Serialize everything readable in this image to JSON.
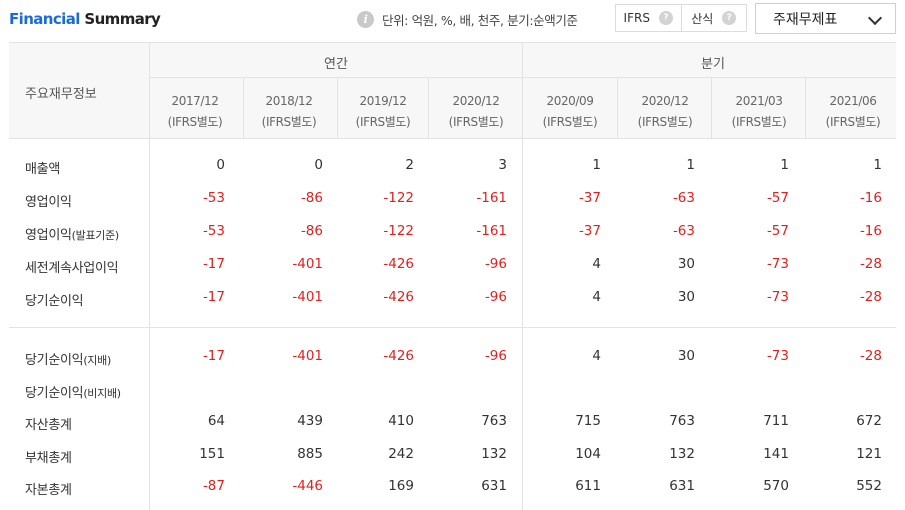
{
  "header": {
    "title_part1": "Financial",
    "title_part2": " Summary",
    "info_icon": "info-icon",
    "unit_text": "단위: 억원, %, 배, 천주, 분기:순액기준",
    "toggle_ifrs": "IFRS",
    "toggle_formula": "산식",
    "help_glyph": "?",
    "select_value": "주재무제표"
  },
  "table": {
    "header_label": "주요재무정보",
    "groups": {
      "annual": "연간",
      "quarterly": "분기"
    },
    "periods": [
      {
        "date": "2017/12",
        "basis": "(IFRS별도)"
      },
      {
        "date": "2018/12",
        "basis": "(IFRS별도)"
      },
      {
        "date": "2019/12",
        "basis": "(IFRS별도)"
      },
      {
        "date": "2020/12",
        "basis": "(IFRS별도)"
      },
      {
        "date": "2020/09",
        "basis": "(IFRS별도)"
      },
      {
        "date": "2020/12",
        "basis": "(IFRS별도)"
      },
      {
        "date": "2021/03",
        "basis": "(IFRS별도)"
      },
      {
        "date": "2021/06",
        "basis": "(IFRS별도)"
      }
    ],
    "rows": [
      {
        "label": "매출액",
        "suffix": "",
        "values": [
          "0",
          "0",
          "2",
          "3",
          "1",
          "1",
          "1",
          "1"
        ]
      },
      {
        "label": "영업이익",
        "suffix": "",
        "values": [
          "-53",
          "-86",
          "-122",
          "-161",
          "-37",
          "-63",
          "-57",
          "-16"
        ]
      },
      {
        "label": "영업이익",
        "suffix": "(발표기준)",
        "values": [
          "-53",
          "-86",
          "-122",
          "-161",
          "-37",
          "-63",
          "-57",
          "-16"
        ]
      },
      {
        "label": "세전계속사업이익",
        "suffix": "",
        "values": [
          "-17",
          "-401",
          "-426",
          "-96",
          "4",
          "30",
          "-73",
          "-28"
        ]
      },
      {
        "label": "당기순이익",
        "suffix": "",
        "values": [
          "-17",
          "-401",
          "-426",
          "-96",
          "4",
          "30",
          "-73",
          "-28"
        ]
      },
      {
        "label": "당기순이익",
        "suffix": "(지배)",
        "values": [
          "-17",
          "-401",
          "-426",
          "-96",
          "4",
          "30",
          "-73",
          "-28"
        ]
      },
      {
        "label": "당기순이익",
        "suffix": "(비지배)",
        "values": [
          "",
          "",
          "",
          "",
          "",
          "",
          "",
          ""
        ]
      },
      {
        "label": "자산총계",
        "suffix": "",
        "values": [
          "64",
          "439",
          "410",
          "763",
          "715",
          "763",
          "711",
          "672"
        ]
      },
      {
        "label": "부채총계",
        "suffix": "",
        "values": [
          "151",
          "885",
          "242",
          "132",
          "104",
          "132",
          "141",
          "121"
        ]
      },
      {
        "label": "자본총계",
        "suffix": "",
        "values": [
          "-87",
          "-446",
          "169",
          "631",
          "611",
          "631",
          "570",
          "552"
        ]
      }
    ]
  }
}
